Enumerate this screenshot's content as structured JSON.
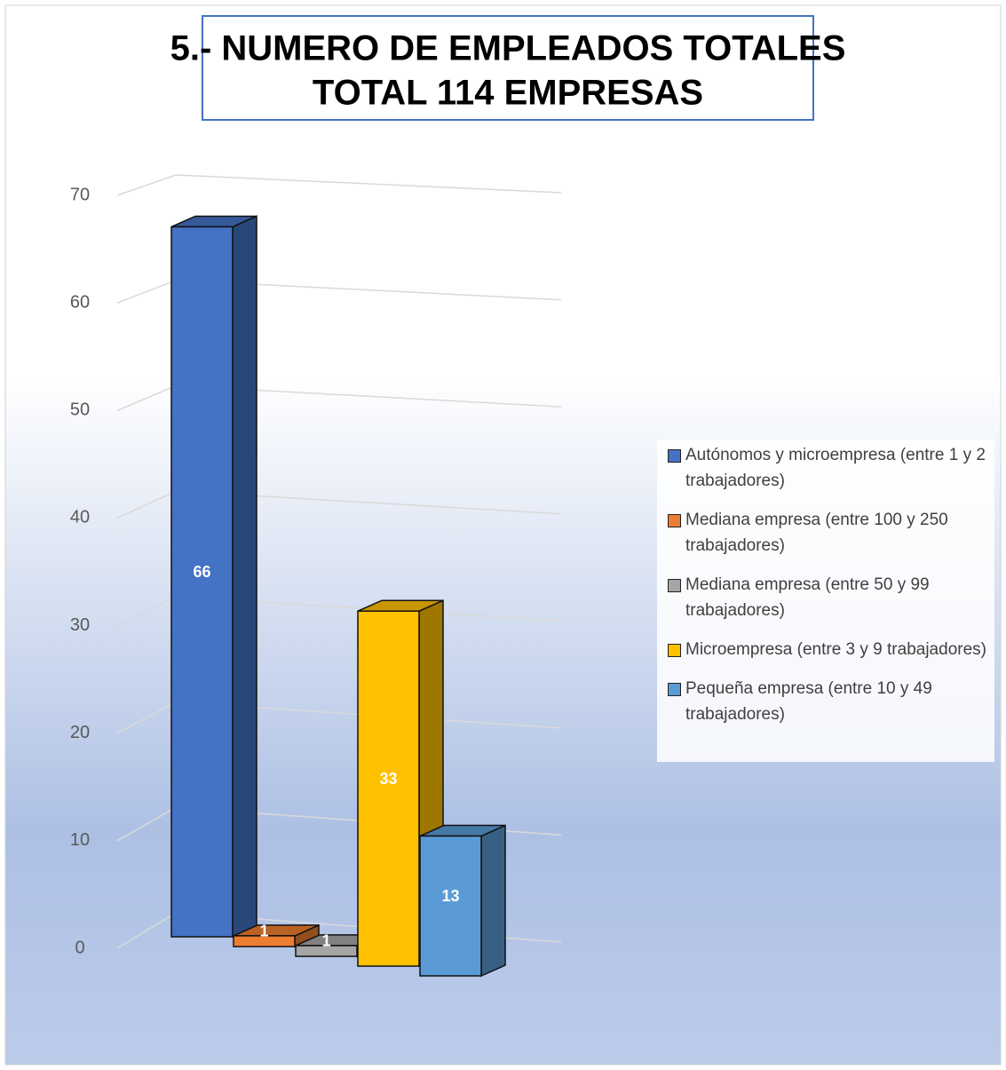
{
  "chart_data": {
    "type": "bar3d",
    "title": "5.- NUMERO DE EMPLEADOS TOTALES",
    "subtitle": "TOTAL 114 EMPRESAS",
    "ylim": [
      0,
      70
    ],
    "yticks": [
      0,
      10,
      20,
      30,
      40,
      50,
      60,
      70
    ],
    "grid": true,
    "legend": "right",
    "series": [
      {
        "name": "Autónomos y microempresa (entre 1 y 2 trabajadores)",
        "color": "#4472c4",
        "values": [
          66
        ]
      },
      {
        "name": "Mediana empresa (entre 100 y 250 trabajadores)",
        "color": "#ed7d31",
        "values": [
          1
        ]
      },
      {
        "name": "Mediana empresa (entre 50 y 99 trabajadores)",
        "color": "#a5a5a5",
        "values": [
          1
        ]
      },
      {
        "name": "Microempresa (entre 3 y 9 trabajadores)",
        "color": "#ffc000",
        "values": [
          33
        ]
      },
      {
        "name": "Pequeña empresa (entre 10 y 49 trabajadores)",
        "color": "#5b9bd5",
        "values": [
          13
        ]
      }
    ]
  }
}
